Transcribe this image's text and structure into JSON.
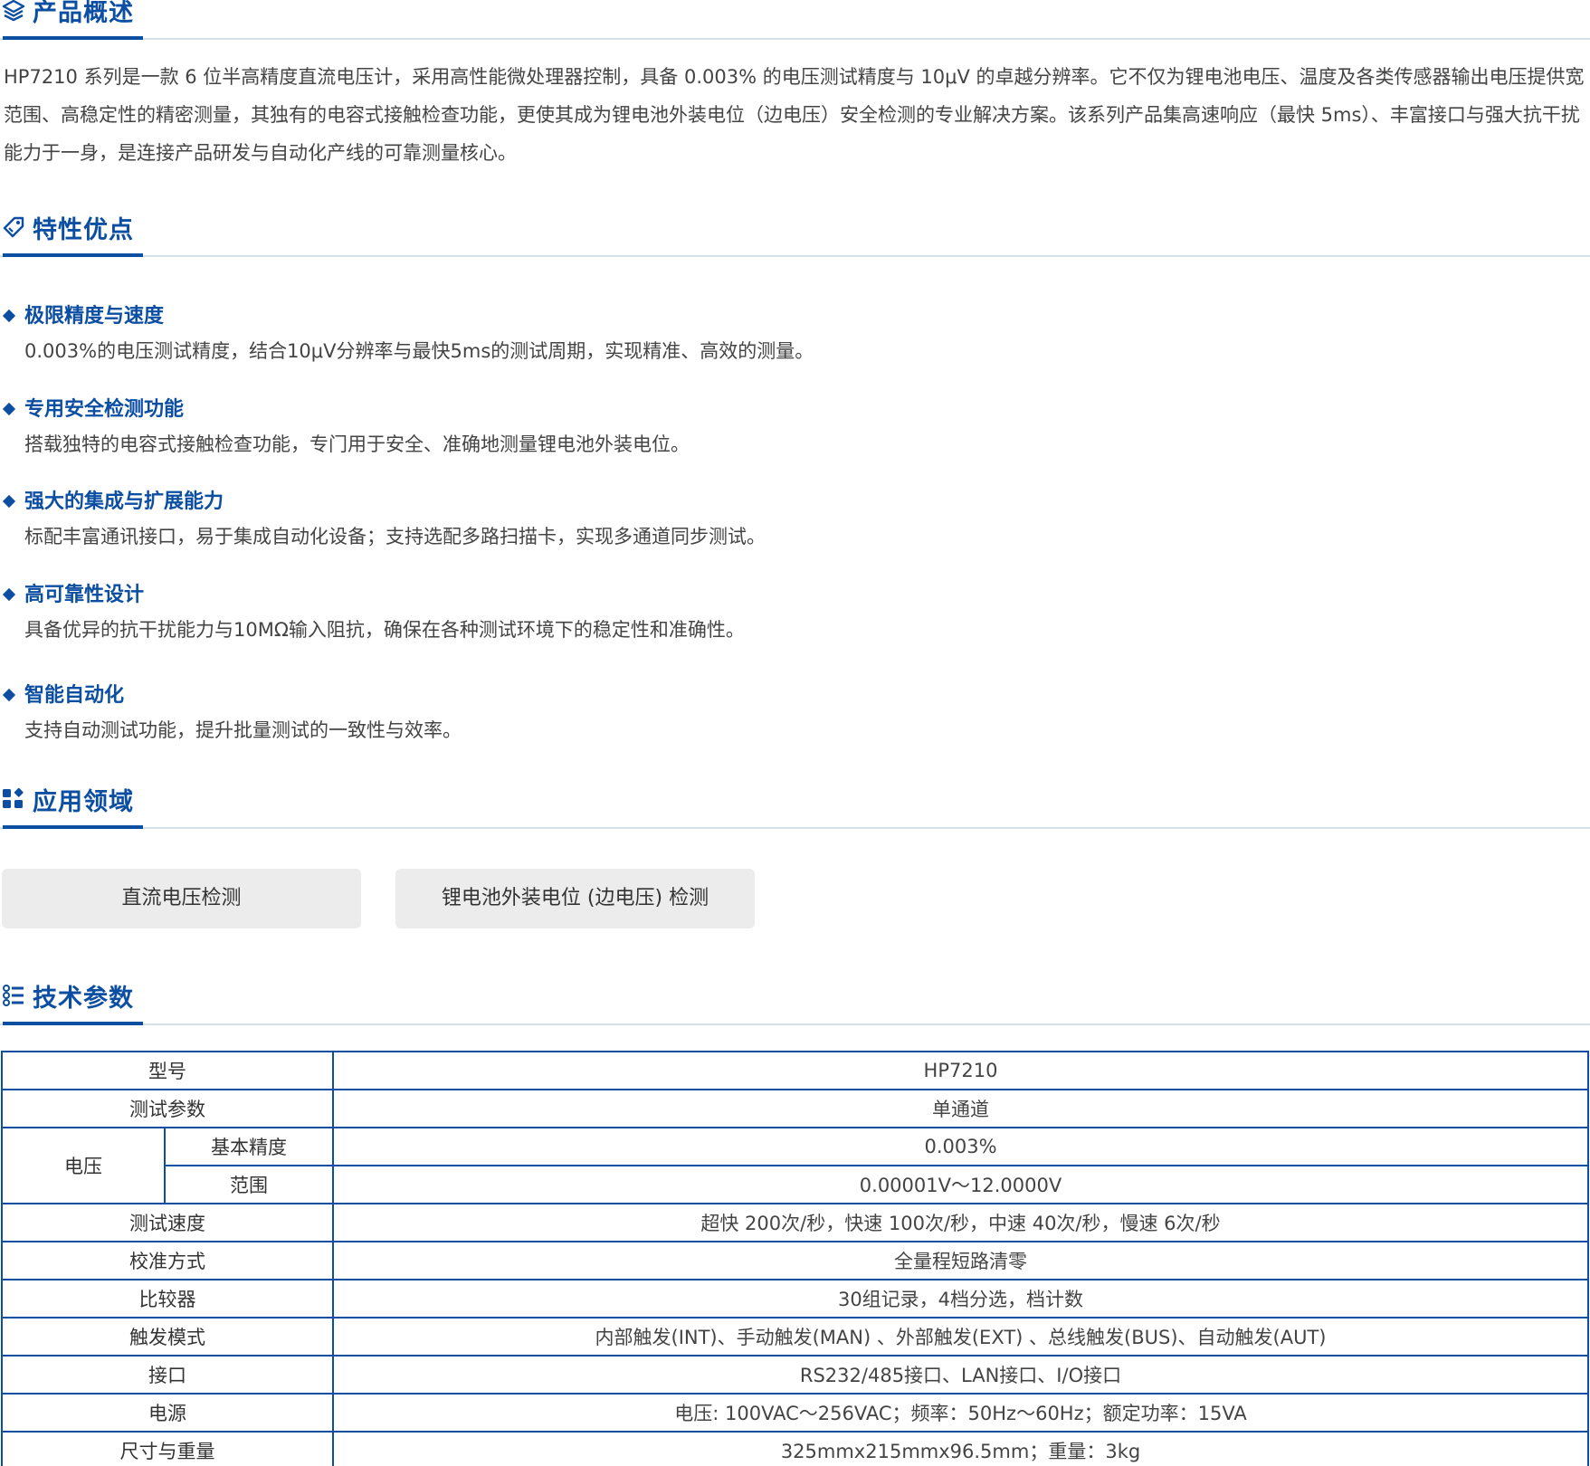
{
  "sections": {
    "overview": {
      "title": "产品概述",
      "icon": "layers-icon",
      "text": "HP7210 系列是一款 6 位半高精度直流电压计，采用高性能微处理器控制，具备 0.003% 的电压测试精度与 10μV 的卓越分辨率。它不仅为锂电池电压、温度及各类传感器输出电压提供宽范围、高稳定性的精密测量，其独有的电容式接触检查功能，更使其成为锂电池外装电位（边电压）安全检测的专业解决方案。该系列产品集高速响应（最快 5ms）、丰富接口与强大抗干扰能力于一身，是连接产品研发与自动化产线的可靠测量核心。"
    },
    "features": {
      "title": "特性优点",
      "icon": "tag-icon",
      "items": [
        {
          "title": "极限精度与速度",
          "desc": "0.003%的电压测试精度，结合10μV分辨率与最快5ms的测试周期，实现精准、高效的测量。"
        },
        {
          "title": "专用安全检测功能",
          "desc": "搭载独特的电容式接触检查功能，专门用于安全、准确地测量锂电池外装电位。"
        },
        {
          "title": "强大的集成与扩展能力",
          "desc": "标配丰富通讯接口，易于集成自动化设备；支持选配多路扫描卡，实现多通道同步测试。"
        },
        {
          "title": "高可靠性设计",
          "desc": "具备优异的抗干扰能力与10MΩ输入阻抗，确保在各种测试环境下的稳定性和准确性。"
        },
        {
          "title": "智能自动化",
          "desc": "支持自动测试功能，提升批量测试的一致性与效率。"
        }
      ]
    },
    "applications": {
      "title": "应用领域",
      "icon": "grid-icon",
      "items": [
        "直流电压检测",
        "锂电池外装电位 (边电压) 检测"
      ]
    },
    "specs": {
      "title": "技术参数",
      "icon": "list-icon",
      "rows": {
        "model": {
          "label": "型号",
          "value": "HP7210"
        },
        "params": {
          "label": "测试参数",
          "value": "单通道"
        },
        "voltage": {
          "label": "电压",
          "accuracy_label": "基本精度",
          "accuracy": "0.003%",
          "range_label": "范围",
          "range": "0.00001V～12.0000V"
        },
        "speed": {
          "label": "测试速度",
          "value": "超快 200次/秒，快速 100次/秒，中速 40次/秒，慢速 6次/秒"
        },
        "calibration": {
          "label": "校准方式",
          "value": "全量程短路清零"
        },
        "comparator": {
          "label": "比较器",
          "value": "30组记录，4档分选，档计数"
        },
        "trigger": {
          "label": "触发模式",
          "value": "内部触发(INT)、手动触发(MAN) 、外部触发(EXT) 、总线触发(BUS)、自动触发(AUT)"
        },
        "interface": {
          "label": "接口",
          "value": "RS232/485接口、LAN接口、I/O接口"
        },
        "power": {
          "label": "电源",
          "value": "电压: 100VAC～256VAC；频率：50Hz～60Hz；额定功率：15VA"
        },
        "size": {
          "label": "尺寸与重量",
          "value": "325mmx215mmx96.5mm；重量：3kg"
        }
      }
    }
  },
  "colors": {
    "accent": "#0b4ea2",
    "divider": "#d6deea",
    "box": "#ececec"
  }
}
